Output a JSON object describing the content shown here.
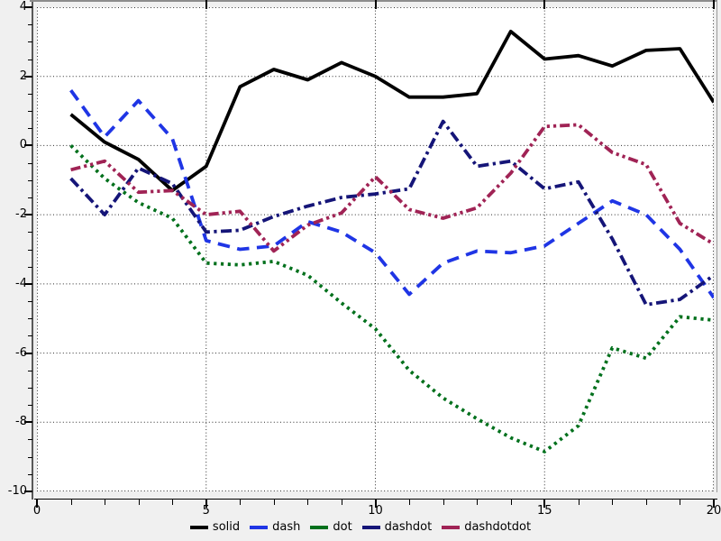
{
  "colors": {
    "background": "#f0f0f0",
    "plot_background": "#ffffff",
    "grid": "#2b2b2b",
    "axis": "#000000",
    "spine": "#8c8c8c"
  },
  "axes": {
    "y_major_labels": [
      "4",
      "2",
      "0",
      "-2",
      "-4",
      "-6",
      "-8",
      "-10"
    ],
    "x_major_labels": [
      "0",
      "5",
      "10",
      "15",
      "20"
    ]
  },
  "legend": {
    "items": [
      {
        "label": "solid",
        "color": "#000000"
      },
      {
        "label": "dash",
        "color": "#1f35e5"
      },
      {
        "label": "dot",
        "color": "#00701c"
      },
      {
        "label": "dashdot",
        "color": "#151578"
      },
      {
        "label": "dashdotdot",
        "color": "#a02355"
      }
    ]
  },
  "chart_data": {
    "type": "line",
    "title": "",
    "xlabel": "",
    "ylabel": "",
    "xlim": [
      0,
      20
    ],
    "ylim": [
      -10,
      4
    ],
    "x_major_ticks": [
      0,
      5,
      10,
      15,
      20
    ],
    "x_minor_step": 1,
    "y_major_ticks": [
      4,
      2,
      0,
      -2,
      -4,
      -6,
      -8,
      -10
    ],
    "y_minor_step": 0.5,
    "grid": true,
    "grid_style": "dotted",
    "legend_position": "bottom-center",
    "x": [
      1,
      2,
      3,
      4,
      5,
      6,
      7,
      8,
      9,
      10,
      11,
      12,
      13,
      14,
      15,
      16,
      17,
      18,
      19,
      20
    ],
    "series": [
      {
        "name": "solid",
        "color": "#000000",
        "linestyle": "solid",
        "values": [
          0.9,
          0.1,
          -0.4,
          -1.3,
          -0.6,
          1.7,
          2.2,
          1.9,
          2.4,
          2.0,
          1.4,
          1.4,
          1.5,
          3.3,
          2.5,
          2.6,
          2.3,
          2.75,
          2.8,
          1.25
        ]
      },
      {
        "name": "dash",
        "color": "#1f35e5",
        "linestyle": "dash",
        "values": [
          1.6,
          0.25,
          1.3,
          0.2,
          -2.75,
          -3.0,
          -2.9,
          -2.2,
          -2.5,
          -3.1,
          -4.3,
          -3.4,
          -3.05,
          -3.1,
          -2.9,
          -2.25,
          -1.6,
          -2.0,
          -3.0,
          -4.4
        ]
      },
      {
        "name": "dot",
        "color": "#00701c",
        "linestyle": "dot",
        "values": [
          0.0,
          -0.95,
          -1.65,
          -2.1,
          -3.4,
          -3.45,
          -3.35,
          -3.75,
          -4.55,
          -5.3,
          -6.5,
          -7.3,
          -7.9,
          -8.45,
          -8.85,
          -8.1,
          -5.85,
          -6.15,
          -4.95,
          -5.05
        ]
      },
      {
        "name": "dashdot",
        "color": "#151578",
        "linestyle": "dashdot",
        "values": [
          -0.95,
          -2.0,
          -0.65,
          -1.1,
          -2.5,
          -2.45,
          -2.05,
          -1.75,
          -1.5,
          -1.4,
          -1.25,
          0.7,
          -0.6,
          -0.45,
          -1.25,
          -1.05,
          -2.7,
          -4.6,
          -4.45,
          -3.75
        ]
      },
      {
        "name": "dashdotdot",
        "color": "#a02355",
        "linestyle": "dashdotdot",
        "values": [
          -0.7,
          -0.45,
          -1.35,
          -1.3,
          -2.0,
          -1.9,
          -3.05,
          -2.3,
          -1.95,
          -0.9,
          -1.85,
          -2.1,
          -1.8,
          -0.8,
          0.55,
          0.6,
          -0.2,
          -0.55,
          -2.25,
          -2.85
        ]
      }
    ]
  }
}
